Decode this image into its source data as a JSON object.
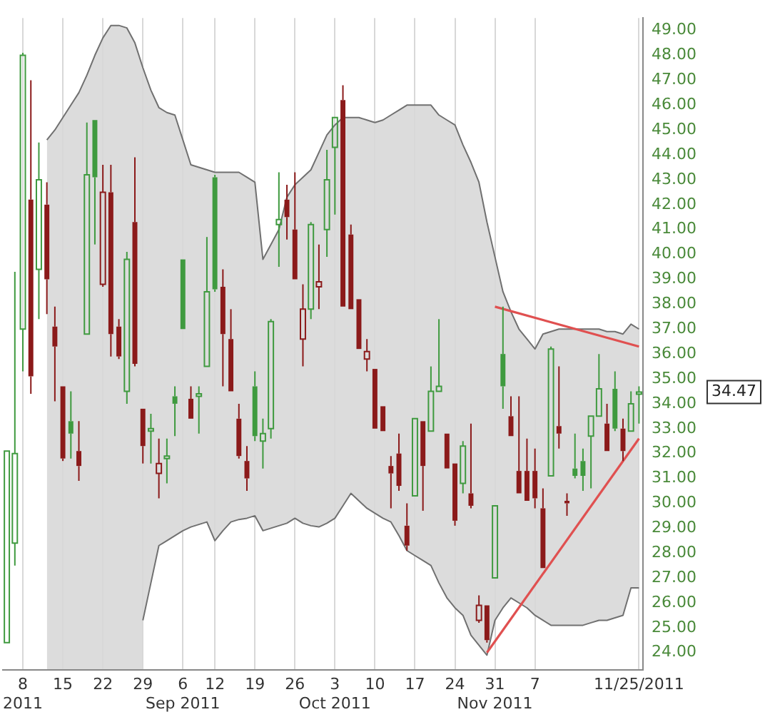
{
  "chart_data": {
    "type": "candlestick",
    "categories": [
      null,
      null,
      "8\n2011",
      null,
      null,
      null,
      null,
      "15",
      null,
      null,
      null,
      null,
      "22",
      null,
      null,
      null,
      null,
      "29",
      null,
      null,
      null,
      null,
      "6\nSep 2011",
      null,
      null,
      null,
      "12",
      null,
      null,
      null,
      null,
      "19",
      null,
      null,
      null,
      null,
      "26",
      null,
      null,
      null,
      null,
      "3\nOct 2011",
      null,
      null,
      null,
      null,
      "10",
      null,
      null,
      null,
      null,
      "17",
      null,
      null,
      null,
      null,
      "24",
      null,
      null,
      null,
      null,
      "31\nNov 2011",
      null,
      null,
      null,
      null,
      "7",
      null,
      null,
      null,
      null,
      null,
      null,
      null,
      null,
      null,
      null,
      null,
      null,
      "11/25/2011"
    ],
    "ohlc": [
      [
        24.4,
        32.1,
        24.4,
        32.1
      ],
      [
        28.4,
        39.3,
        27.5,
        32.0
      ],
      [
        37.0,
        48.1,
        35.3,
        48.0
      ],
      [
        42.2,
        47.0,
        34.4,
        35.1
      ],
      [
        39.4,
        44.5,
        37.4,
        43.0
      ],
      [
        42.0,
        42.9,
        37.6,
        39.0
      ],
      [
        37.1,
        37.9,
        34.1,
        36.3
      ],
      [
        34.7,
        34.7,
        31.7,
        31.8
      ],
      [
        33.3,
        34.5,
        31.8,
        32.8
      ],
      [
        32.1,
        33.3,
        30.9,
        31.5
      ],
      [
        36.8,
        45.3,
        36.8,
        43.2
      ],
      [
        45.4,
        45.4,
        40.4,
        43.1
      ],
      [
        38.8,
        43.6,
        38.7,
        42.5
      ],
      [
        42.5,
        43.6,
        35.9,
        36.8
      ],
      [
        37.1,
        37.4,
        35.8,
        35.9
      ],
      [
        34.5,
        40.1,
        34.0,
        39.8
      ],
      [
        41.3,
        43.9,
        35.5,
        35.6
      ],
      [
        33.8,
        33.8,
        31.6,
        32.3
      ],
      [
        32.9,
        33.6,
        31.6,
        33.0
      ],
      [
        31.2,
        32.6,
        30.2,
        31.6
      ],
      [
        31.8,
        32.6,
        30.8,
        31.9
      ],
      [
        34.3,
        34.7,
        32.7,
        34.0
      ],
      [
        39.8,
        39.8,
        37.0,
        37.0
      ],
      [
        34.2,
        34.7,
        33.4,
        33.4
      ],
      [
        34.3,
        34.7,
        32.8,
        34.4
      ],
      [
        35.5,
        40.7,
        35.5,
        38.5
      ],
      [
        43.1,
        43.2,
        38.5,
        38.6
      ],
      [
        38.7,
        39.4,
        34.7,
        36.8
      ],
      [
        36.6,
        37.8,
        34.5,
        34.5
      ],
      [
        33.4,
        34.0,
        31.8,
        31.9
      ],
      [
        31.7,
        32.3,
        30.5,
        31.0
      ],
      [
        34.7,
        35.3,
        32.5,
        32.7
      ],
      [
        32.5,
        33.4,
        31.4,
        32.8
      ],
      [
        33.0,
        37.4,
        32.6,
        37.3
      ],
      [
        41.2,
        43.3,
        39.5,
        41.4
      ],
      [
        42.2,
        42.8,
        40.6,
        41.5
      ],
      [
        41.0,
        43.3,
        39.0,
        39.0
      ],
      [
        36.6,
        38.8,
        35.5,
        37.8
      ],
      [
        37.8,
        41.3,
        37.4,
        41.2
      ],
      [
        38.7,
        40.4,
        37.8,
        38.9
      ],
      [
        41.0,
        44.2,
        39.9,
        43.0
      ],
      [
        44.3,
        45.5,
        41.6,
        45.5
      ],
      [
        46.2,
        46.8,
        37.9,
        37.9
      ],
      [
        40.8,
        41.2,
        37.8,
        37.8
      ],
      [
        38.2,
        38.2,
        36.2,
        36.2
      ],
      [
        35.8,
        36.6,
        35.3,
        36.1
      ],
      [
        35.4,
        35.4,
        33.0,
        33.0
      ],
      [
        33.9,
        33.9,
        32.9,
        32.9
      ],
      [
        31.5,
        31.9,
        29.8,
        31.2
      ],
      [
        32.0,
        32.8,
        30.5,
        30.7
      ],
      [
        29.1,
        30.0,
        28.1,
        28.3
      ],
      [
        30.3,
        33.4,
        30.3,
        33.4
      ],
      [
        33.3,
        33.3,
        29.7,
        31.5
      ],
      [
        32.9,
        35.5,
        32.9,
        34.5
      ],
      [
        34.5,
        37.4,
        34.5,
        34.7
      ],
      [
        32.8,
        32.8,
        31.4,
        31.4
      ],
      [
        31.6,
        31.6,
        29.1,
        29.3
      ],
      [
        30.8,
        32.5,
        30.4,
        32.3
      ],
      [
        30.4,
        33.2,
        29.8,
        29.9
      ],
      [
        25.3,
        26.3,
        25.2,
        25.9
      ],
      [
        25.9,
        25.9,
        24.4,
        24.5
      ],
      [
        27.0,
        29.9,
        27.0,
        29.9
      ],
      [
        36.0,
        37.9,
        33.8,
        34.7
      ],
      [
        33.5,
        34.3,
        32.7,
        32.7
      ],
      [
        31.3,
        34.3,
        30.4,
        30.4
      ],
      [
        31.3,
        32.6,
        30.1,
        30.1
      ],
      [
        31.3,
        32.2,
        29.8,
        30.2
      ],
      [
        29.8,
        30.6,
        27.4,
        27.4
      ],
      [
        31.1,
        36.3,
        31.1,
        36.2
      ],
      [
        33.1,
        35.5,
        32.2,
        32.8
      ],
      [
        30.1,
        30.4,
        29.5,
        30.0
      ],
      [
        31.4,
        32.8,
        31.0,
        31.1
      ],
      [
        31.7,
        32.2,
        30.5,
        31.1
      ],
      [
        32.7,
        33.5,
        30.6,
        33.5
      ],
      [
        33.5,
        36.0,
        33.5,
        34.6
      ],
      [
        33.2,
        34.0,
        32.1,
        32.1
      ],
      [
        34.6,
        35.3,
        32.9,
        33.0
      ],
      [
        33.0,
        33.4,
        31.7,
        32.1
      ],
      [
        32.9,
        34.5,
        32.9,
        34.0
      ],
      [
        34.4,
        34.7,
        33.2,
        34.47
      ]
    ],
    "colors": [
      "#3f9a3f",
      "#3f9a3f",
      "#3f9a3f",
      "#8b1a1a",
      "#3f9a3f",
      "#8b1a1a",
      "#8b1a1a",
      "#8b1a1a",
      "#3f9a3f",
      "#8b1a1a",
      "#3f9a3f",
      "#3f9a3f",
      "#8b1a1a",
      "#8b1a1a",
      "#8b1a1a",
      "#3f9a3f",
      "#8b1a1a",
      "#8b1a1a",
      "#3f9a3f",
      "#8b1a1a",
      "#3f9a3f",
      "#3f9a3f",
      "#3f9a3f",
      "#8b1a1a",
      "#3f9a3f",
      "#3f9a3f",
      "#3f9a3f",
      "#8b1a1a",
      "#8b1a1a",
      "#8b1a1a",
      "#8b1a1a",
      "#3f9a3f",
      "#3f9a3f",
      "#3f9a3f",
      "#3f9a3f",
      "#8b1a1a",
      "#8b1a1a",
      "#8b1a1a",
      "#3f9a3f",
      "#8b1a1a",
      "#3f9a3f",
      "#3f9a3f",
      "#8b1a1a",
      "#8b1a1a",
      "#8b1a1a",
      "#8b1a1a",
      "#8b1a1a",
      "#8b1a1a",
      "#8b1a1a",
      "#8b1a1a",
      "#8b1a1a",
      "#3f9a3f",
      "#8b1a1a",
      "#3f9a3f",
      "#3f9a3f",
      "#8b1a1a",
      "#8b1a1a",
      "#3f9a3f",
      "#8b1a1a",
      "#8b1a1a",
      "#8b1a1a",
      "#3f9a3f",
      "#3f9a3f",
      "#8b1a1a",
      "#8b1a1a",
      "#8b1a1a",
      "#8b1a1a",
      "#8b1a1a",
      "#3f9a3f",
      "#8b1a1a",
      "#8b1a1a",
      "#3f9a3f",
      "#3f9a3f",
      "#3f9a3f",
      "#3f9a3f",
      "#8b1a1a",
      "#3f9a3f",
      "#8b1a1a",
      "#3f9a3f",
      "#3f9a3f"
    ],
    "series": [
      {
        "type": "area",
        "color": "#707070",
        "values": [
          null,
          null,
          null,
          null,
          null,
          44.6,
          45.0,
          45.5,
          46.0,
          46.5,
          47.2,
          48.0,
          48.7,
          49.2,
          49.2,
          49.1,
          48.5,
          47.5,
          46.6,
          45.9,
          45.7,
          45.6,
          44.6,
          43.6,
          43.5,
          43.4,
          43.3,
          43.3,
          43.3,
          43.3,
          43.1,
          42.9,
          39.8,
          40.4,
          41.0,
          42.3,
          42.8,
          43.1,
          43.4,
          44.1,
          44.8,
          45.2,
          45.5,
          45.5,
          45.5,
          45.4,
          45.3,
          45.4,
          45.6,
          45.8,
          46.0,
          46.0,
          46.0,
          46.0,
          45.6,
          45.4,
          45.2,
          44.4,
          43.7,
          42.9,
          41.3,
          39.9,
          38.5,
          37.7,
          37.0,
          36.6,
          36.2,
          36.8,
          36.9,
          37.0,
          37.0,
          37.0,
          37.0,
          37.0,
          37.0,
          36.9,
          36.9,
          36.8,
          37.2,
          37.0
        ]
      },
      {
        "type": "area",
        "color": "#707070",
        "values": [
          null,
          null,
          null,
          null,
          null,
          null,
          null,
          null,
          null,
          null,
          null,
          null,
          null,
          null,
          null,
          null,
          null,
          25.3,
          26.8,
          28.3,
          28.5,
          28.7,
          28.9,
          29.05,
          29.15,
          29.25,
          28.5,
          28.9,
          29.25,
          29.35,
          29.4,
          29.5,
          28.9,
          29.0,
          29.1,
          29.2,
          29.4,
          29.2,
          29.1,
          29.05,
          29.2,
          29.4,
          29.9,
          30.4,
          30.1,
          29.8,
          29.6,
          29.4,
          29.25,
          28.7,
          28.1,
          27.9,
          27.7,
          27.5,
          26.8,
          26.2,
          25.8,
          25.5,
          24.7,
          24.3,
          23.9,
          25.3,
          25.8,
          26.2,
          26.0,
          25.8,
          25.5,
          25.3,
          25.1,
          25.1,
          25.1,
          25.1,
          25.1,
          25.2,
          25.3,
          25.3,
          25.4,
          25.5,
          26.6,
          26.6
        ]
      },
      {
        "type": "line",
        "color": "#e05050",
        "values": [
          null,
          null,
          null,
          null,
          null,
          null,
          null,
          null,
          null,
          null,
          null,
          null,
          null,
          null,
          null,
          null,
          null,
          null,
          null,
          null,
          null,
          null,
          null,
          null,
          null,
          null,
          null,
          null,
          null,
          null,
          null,
          null,
          null,
          null,
          null,
          null,
          null,
          null,
          null,
          null,
          null,
          null,
          null,
          null,
          null,
          null,
          null,
          null,
          null,
          null,
          null,
          null,
          null,
          null,
          null,
          null,
          null,
          null,
          null,
          null,
          null,
          37.9,
          null,
          null,
          null,
          null,
          null,
          null,
          null,
          null,
          null,
          null,
          null,
          null,
          null,
          null,
          null,
          null,
          null,
          36.3
        ]
      },
      {
        "type": "line",
        "color": "#e05050",
        "values": [
          null,
          null,
          null,
          null,
          null,
          null,
          null,
          null,
          null,
          null,
          null,
          null,
          null,
          null,
          null,
          null,
          null,
          null,
          null,
          null,
          null,
          null,
          null,
          null,
          null,
          null,
          null,
          null,
          null,
          null,
          null,
          null,
          null,
          null,
          null,
          null,
          null,
          null,
          null,
          null,
          null,
          null,
          null,
          null,
          null,
          null,
          null,
          null,
          null,
          null,
          null,
          null,
          null,
          null,
          null,
          null,
          null,
          null,
          null,
          null,
          24.0,
          null,
          null,
          null,
          null,
          null,
          null,
          null,
          null,
          null,
          null,
          null,
          null,
          null,
          null,
          null,
          null,
          null,
          null,
          32.6
        ]
      }
    ],
    "ylim": [
      23.3,
      49.5
    ],
    "yticks": [
      {
        "value": 24,
        "label": "24.00"
      },
      {
        "value": 25,
        "label": "25.00"
      },
      {
        "value": 26,
        "label": "26.00"
      },
      {
        "value": 27,
        "label": "27.00"
      },
      {
        "value": 28,
        "label": "28.00"
      },
      {
        "value": 29,
        "label": "29.00"
      },
      {
        "value": 30,
        "label": "30.00"
      },
      {
        "value": 31,
        "label": "31.00"
      },
      {
        "value": 32,
        "label": "32.00"
      },
      {
        "value": 33,
        "label": "33.00"
      },
      {
        "value": 34,
        "label": "34.00"
      },
      {
        "value": 35,
        "label": "35.00"
      },
      {
        "value": 36,
        "label": "36.00"
      },
      {
        "value": 37,
        "label": "37.00"
      },
      {
        "value": 38,
        "label": "38.00"
      },
      {
        "value": 39,
        "label": "39.00"
      },
      {
        "value": 40,
        "label": "40.00"
      },
      {
        "value": 41,
        "label": "41.00"
      },
      {
        "value": 42,
        "label": "42.00"
      },
      {
        "value": 43,
        "label": "43.00"
      },
      {
        "value": 44,
        "label": "44.00"
      },
      {
        "value": 45,
        "label": "45.00"
      },
      {
        "value": 46,
        "label": "46.00"
      },
      {
        "value": 47,
        "label": "47.00"
      },
      {
        "value": 48,
        "label": "48.00"
      },
      {
        "value": 49,
        "label": "49.00"
      }
    ],
    "grid": "x",
    "legend": false,
    "annotations": [
      "34.47"
    ]
  }
}
